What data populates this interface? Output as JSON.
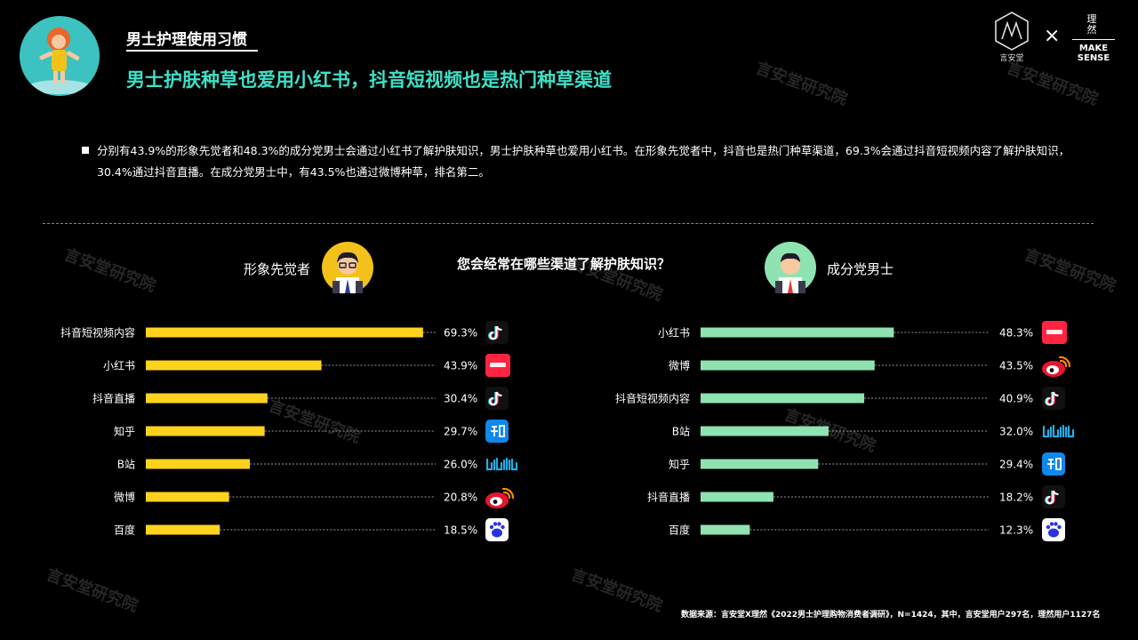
{
  "header": {
    "section_title": "男士护理使用习惯",
    "headline": "男士护肤种草也爱用小红书，抖音短视频也是热门种草渠道"
  },
  "logos": {
    "left_text": "言安堂",
    "times": "×",
    "right_top": "理 然",
    "right_bottom": "MAKE SENSE"
  },
  "bullet": "分别有43.9%的形象先觉者和48.3%的成分党男士会通过小红书了解护肤知识，男士护肤种草也爱用小红书。在形象先觉者中，抖音也是热门种草渠道，69.3%会通过抖音短视频内容了解护肤知识，30.4%通过抖音直播。在成分党男士中，有43.5%也通过微博种草，排名第二。",
  "question": "您会经常在哪些渠道了解护肤知识？",
  "groups": {
    "left": "形象先觉者",
    "right": "成分党男士"
  },
  "watermark": "言安堂研究院",
  "source": "数据来源：言安堂X理然《2022男士护理购物消费者调研》，N=1424，其中，言安堂用户297名，理然用户1127名",
  "colors": {
    "left_bar": "#ffd21e",
    "right_bar": "#8fe3b0",
    "headline": "#3ee0c8"
  },
  "chart_data": [
    {
      "type": "bar",
      "orientation": "horizontal",
      "series": [
        {
          "name": "形象先觉者",
          "values": [
            69.3,
            43.9,
            30.4,
            29.7,
            26.0,
            20.8,
            18.5
          ]
        }
      ],
      "categories": [
        "抖音短视频内容",
        "小红书",
        "抖音直播",
        "知乎",
        "B站",
        "微博",
        "百度"
      ],
      "value_labels": [
        "69.3%",
        "43.9%",
        "30.4%",
        "29.7%",
        "26.0%",
        "20.8%",
        "18.5%"
      ],
      "icons": [
        "douyin-icon",
        "xiaohongshu-icon",
        "douyin-icon",
        "zhihu-icon",
        "bilibili-icon",
        "weibo-icon",
        "baidu-icon"
      ],
      "xlim": [
        0,
        70
      ]
    },
    {
      "type": "bar",
      "orientation": "horizontal",
      "series": [
        {
          "name": "成分党男士",
          "values": [
            48.3,
            43.5,
            40.9,
            32.0,
            29.4,
            18.2,
            12.3
          ]
        }
      ],
      "categories": [
        "小红书",
        "微博",
        "抖音短视频内容",
        "B站",
        "知乎",
        "抖音直播",
        "百度"
      ],
      "value_labels": [
        "48.3%",
        "43.5%",
        "40.9%",
        "32.0%",
        "29.4%",
        "18.2%",
        "12.3%"
      ],
      "icons": [
        "xiaohongshu-icon",
        "weibo-icon",
        "douyin-icon",
        "bilibili-icon",
        "zhihu-icon",
        "douyin-icon",
        "baidu-icon"
      ],
      "xlim": [
        0,
        70
      ]
    }
  ]
}
